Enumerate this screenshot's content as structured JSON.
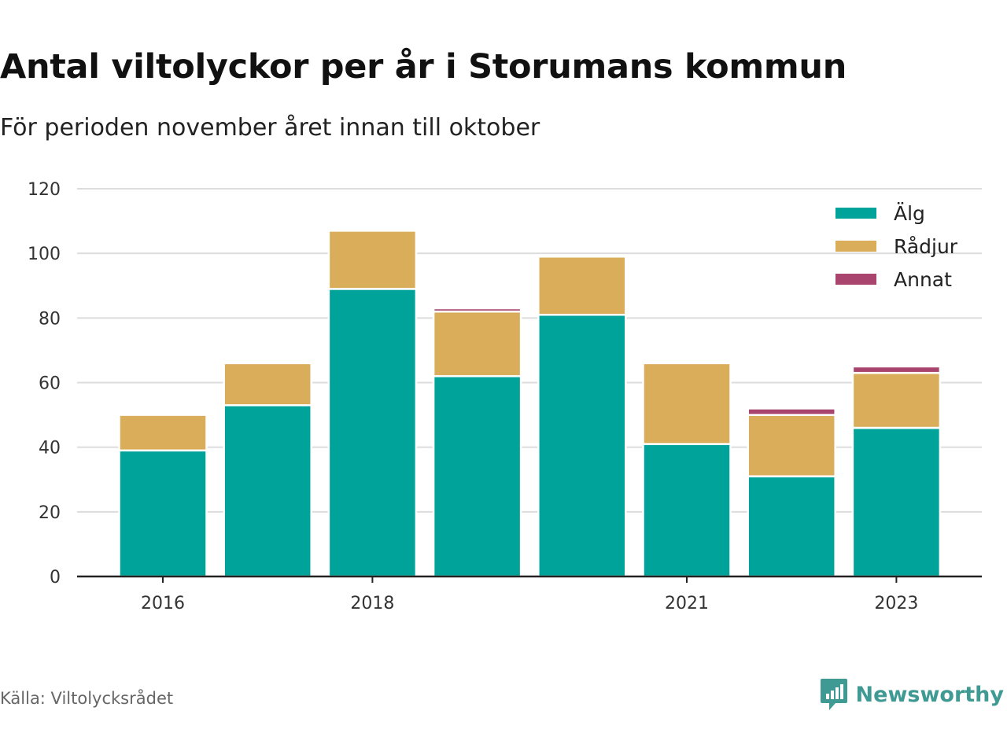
{
  "title": "Antal viltolyckor per år i Storumans kommun",
  "subtitle": "För perioden november året innan till oktober",
  "source": "Källa: Viltolycksrådet",
  "brand": "Newsworthy",
  "colors": {
    "alg": "#00a39a",
    "radjur": "#daad5b",
    "annat": "#a8446d",
    "brand": "#3f9a93"
  },
  "chart_data": {
    "type": "bar",
    "stacked": true,
    "categories": [
      "2016",
      "2017",
      "2018",
      "2019",
      "2020",
      "2021",
      "2022",
      "2023"
    ],
    "x_tick_labels": [
      "2016",
      "2018",
      "2021",
      "2023"
    ],
    "series": [
      {
        "name": "Älg",
        "color": "#00a39a",
        "values": [
          39,
          53,
          89,
          62,
          81,
          41,
          31,
          46
        ]
      },
      {
        "name": "Rådjur",
        "color": "#daad5b",
        "values": [
          11,
          13,
          18,
          20,
          18,
          25,
          19,
          17
        ]
      },
      {
        "name": "Annat",
        "color": "#a8446d",
        "values": [
          0,
          0,
          0,
          1,
          0,
          0,
          2,
          2
        ]
      }
    ],
    "ylim": [
      0,
      120
    ],
    "y_ticks": [
      0,
      20,
      40,
      60,
      80,
      100,
      120
    ],
    "grid": true,
    "legend_position": "top-right"
  }
}
